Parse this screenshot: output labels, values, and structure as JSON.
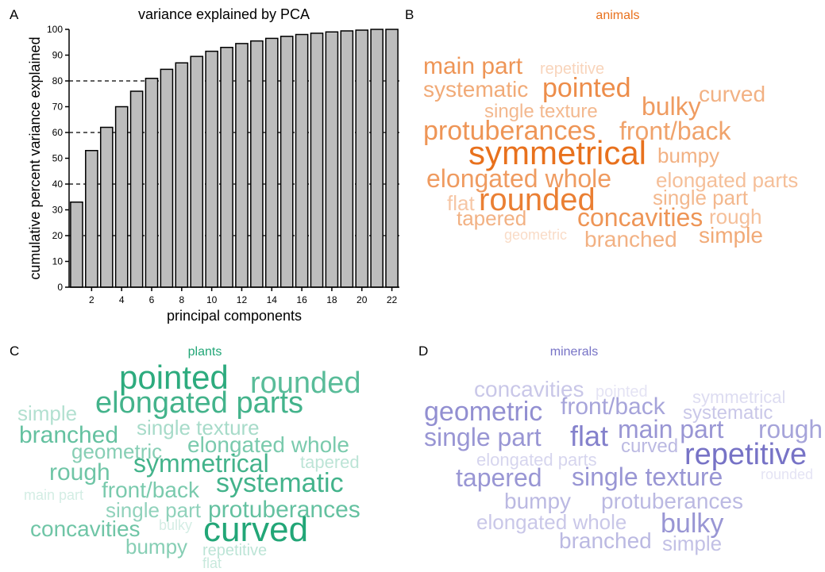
{
  "chart_data": [
    {
      "type": "bar",
      "panel_label": "A",
      "title": "variance explained by PCA",
      "x_label": "principal components",
      "y_label": "cumulative percent variance explained",
      "categories": [
        null,
        "2",
        null,
        "4",
        null,
        "6",
        null,
        "8",
        null,
        "10",
        null,
        "12",
        null,
        "14",
        null,
        "16",
        null,
        "18",
        null,
        "20",
        null,
        "22"
      ],
      "values": [
        33,
        53,
        62,
        70,
        76,
        81,
        84.5,
        87,
        89.5,
        91.5,
        93,
        94.5,
        95.5,
        96.5,
        97.3,
        98,
        98.5,
        99,
        99.4,
        99.7,
        100,
        100
      ],
      "color": "#bdbdbd",
      "ylim": [
        0,
        100
      ],
      "yticks": [
        0,
        10,
        20,
        30,
        40,
        50,
        60,
        70,
        80,
        90,
        100
      ],
      "reference_lines": [
        20,
        40,
        60,
        80
      ]
    },
    {
      "type": "wordcloud",
      "panel_label": "B",
      "title": "animals",
      "color": "#e8711d",
      "words": [
        "main part",
        "repetitive",
        "systematic",
        "pointed",
        "curved",
        "single texture",
        "bulky",
        "protuberances",
        "front/back",
        "symmetrical",
        "bumpy",
        "elongated whole",
        "elongated parts",
        "flat",
        "rounded",
        "single part",
        "tapered",
        "concavities",
        "rough",
        "geometric",
        "branched",
        "simple"
      ]
    },
    {
      "type": "wordcloud",
      "panel_label": "C",
      "title": "plants",
      "color": "#22a677",
      "words": [
        "pointed",
        "rounded",
        "simple",
        "elongated parts",
        "branched",
        "single texture",
        "geometric",
        "elongated whole",
        "symmetrical",
        "tapered",
        "rough",
        "front/back",
        "systematic",
        "main part",
        "single part",
        "protuberances",
        "concavities",
        "bulky",
        "curved",
        "bumpy",
        "repetitive",
        "flat"
      ]
    },
    {
      "type": "wordcloud",
      "panel_label": "D",
      "title": "minerals",
      "color": "#7773c6",
      "words": [
        "concavities",
        "pointed",
        "symmetrical",
        "geometric",
        "front/back",
        "systematic",
        "single part",
        "flat",
        "main part",
        "rough",
        "elongated parts",
        "curved",
        "repetitive",
        "rounded",
        "tapered",
        "single texture",
        "bumpy",
        "protuberances",
        "elongated whole",
        "bulky",
        "branched",
        "simple"
      ]
    }
  ]
}
